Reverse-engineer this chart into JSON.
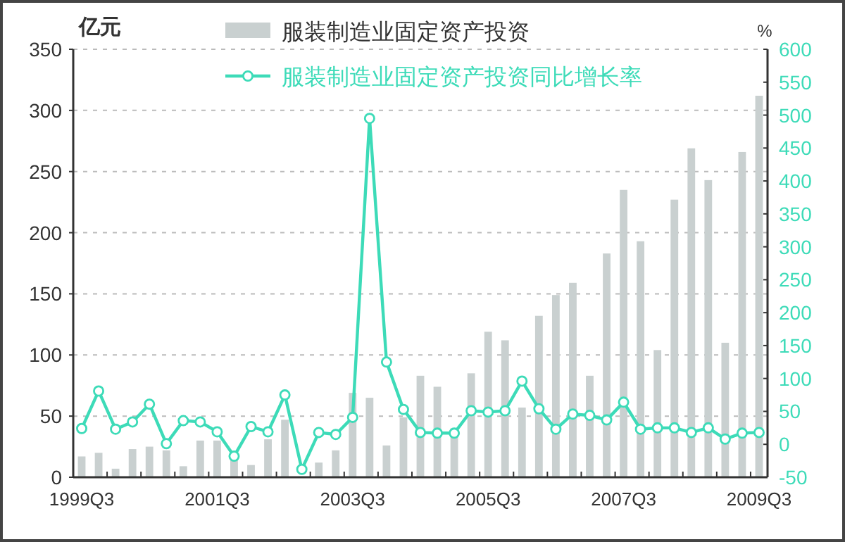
{
  "chart_data": {
    "type": "bar",
    "ylabel": "亿元",
    "y2label": "%",
    "categories": [
      "1999Q3",
      null,
      null,
      null,
      null,
      null,
      null,
      null,
      "2001Q3",
      null,
      null,
      null,
      null,
      null,
      null,
      null,
      "2003Q3",
      null,
      null,
      null,
      null,
      null,
      null,
      null,
      "2005Q3",
      null,
      null,
      null,
      null,
      null,
      null,
      null,
      "2007Q3",
      null,
      null,
      null,
      null,
      null,
      null,
      null,
      "2009Q3"
    ],
    "series": [
      {
        "name": "服装制造业固定资产投资",
        "color": "#c9d0d0",
        "values": [
          17,
          20,
          7,
          23,
          25,
          22,
          9,
          30,
          30,
          14,
          10,
          31,
          47,
          null,
          12,
          22,
          69,
          65,
          26,
          49,
          83,
          74,
          40,
          85,
          119,
          112,
          57,
          132,
          149,
          159,
          83,
          183,
          235,
          193,
          104,
          227,
          269,
          243,
          110,
          266,
          312
        ]
      },
      {
        "name": "服装制造业固定资产投资同比增长率",
        "type": "line",
        "axis": "y2",
        "color": "#3ddbb8",
        "values": [
          24,
          81,
          23,
          34,
          61,
          1,
          36,
          34,
          19,
          -18,
          27,
          19,
          75,
          -38,
          18,
          15,
          41,
          495,
          125,
          53,
          18,
          17,
          17,
          51,
          49,
          51,
          96,
          54,
          23,
          46,
          44,
          37,
          64,
          23,
          25,
          25,
          18,
          25,
          8,
          17,
          18
        ]
      }
    ],
    "ylim": [
      0,
      350
    ],
    "yticks": [
      0,
      50,
      100,
      150,
      200,
      250,
      300,
      350
    ],
    "y2lim": [
      -50,
      600
    ],
    "y2ticks": [
      -50,
      0,
      50,
      100,
      150,
      200,
      250,
      300,
      350,
      400,
      450,
      500,
      550,
      600
    ],
    "grid": "y",
    "legend": "top",
    "marker": "circle",
    "line_style": "solid"
  }
}
